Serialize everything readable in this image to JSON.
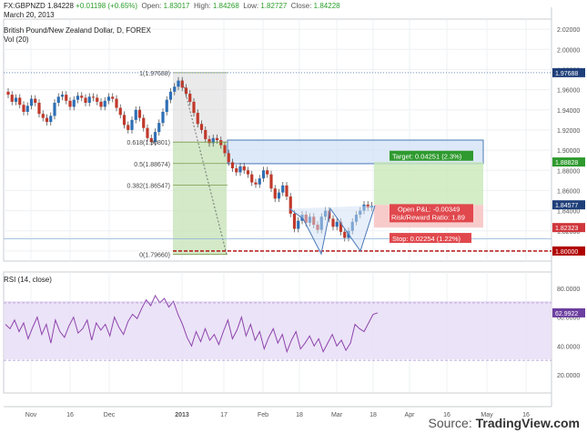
{
  "header": {
    "symbol": "FX:GBPNZD",
    "last": "1.84228",
    "change": "+0.01198 (+0.65%)",
    "open_label": "Open:",
    "open": "1.83017",
    "high_label": "High:",
    "high": "1.84268",
    "low_label": "Low:",
    "low": "1.82727",
    "close_label": "Close:",
    "close": "1.84228",
    "date": "March 20, 2013",
    "title": "British Pound/New Zealand Dollar, D, FOREX",
    "volume_label": "Vol (20)",
    "rsi_label": "RSI (14, close)"
  },
  "footer": {
    "source_prefix": "Source: ",
    "source_brand": "TradingView.com"
  },
  "colors": {
    "up": "#2e6fb5",
    "down": "#c0392b",
    "grid": "#eef0f3",
    "fib_box": "#d9d9d9",
    "green_zone": "#c9e8b9",
    "blue_zone": "#cfe0f5",
    "red_zone": "#f7c5c5",
    "rsi_band": "#e6dcf5",
    "rsi_line": "#8e44ad",
    "support": "#b00000",
    "last_price": "#1f3f7a"
  },
  "price_axis": {
    "ticks": [
      "2.02000",
      "2.00000",
      "1.98000",
      "1.96000",
      "1.94000",
      "1.92000",
      "1.90000",
      "1.88000",
      "1.86000",
      "1.84000",
      "1.82000",
      "1.80000"
    ]
  },
  "price_tags": {
    "top": "1.97688",
    "target": "1.88828",
    "last": "1.84577",
    "stop": "1.82323",
    "support": "1.80000"
  },
  "rsi_axis": {
    "ticks": [
      "80.0000",
      "60.0000",
      "40.0000",
      "20.0000"
    ],
    "value_tag": "62.9922"
  },
  "time_axis": {
    "labels": [
      "Nov",
      "16",
      "Dec",
      "2013",
      "17",
      "Feb",
      "18",
      "Mar",
      "18",
      "Apr",
      "16",
      "May",
      "16"
    ]
  },
  "fib_levels": [
    {
      "label": "1(1.97688)",
      "price": 1.97688
    },
    {
      "label": "0.618(1.90801)",
      "price": 1.90801
    },
    {
      "label": "0.5(1.88674)",
      "price": 1.88674
    },
    {
      "label": "0.382(1.86547)",
      "price": 1.86547
    },
    {
      "label": "0(1.79660)",
      "price": 1.7966
    }
  ],
  "trade_box": {
    "target_label": "Target: 0.04251 (2.3%)",
    "pnl_label": "Open P&L: -0.00349",
    "rr_label": "Risk/Reward Ratio: 1.89",
    "stop_label": "Stop: 0.02254 (1.22%)"
  },
  "chart_data": {
    "type": "candlestick",
    "ylim": [
      1.79,
      2.03
    ],
    "closes": [
      1.955,
      1.948,
      1.952,
      1.945,
      1.938,
      1.944,
      1.951,
      1.947,
      1.936,
      1.932,
      1.928,
      1.934,
      1.947,
      1.953,
      1.955,
      1.949,
      1.943,
      1.95,
      1.954,
      1.952,
      1.947,
      1.953,
      1.952,
      1.948,
      1.943,
      1.949,
      1.953,
      1.951,
      1.942,
      1.935,
      1.925,
      1.92,
      1.93,
      1.94,
      1.932,
      1.922,
      1.912,
      1.908,
      1.918,
      1.927,
      1.938,
      1.95,
      1.958,
      1.963,
      1.969,
      1.962,
      1.956,
      1.948,
      1.937,
      1.926,
      1.92,
      1.911,
      1.907,
      1.912,
      1.91,
      1.905,
      1.897,
      1.888,
      1.882,
      1.878,
      1.884,
      1.88,
      1.876,
      1.868,
      1.866,
      1.872,
      1.88,
      1.876,
      1.862,
      1.852,
      1.858,
      1.865,
      1.854,
      1.837,
      1.822,
      1.83,
      1.836,
      1.828,
      1.834,
      1.826,
      1.821,
      1.834,
      1.84,
      1.832,
      1.824,
      1.829,
      1.819,
      1.813,
      1.82,
      1.829,
      1.836,
      1.84,
      1.846,
      1.843,
      1.845
    ],
    "rsi": [
      55,
      52,
      58,
      50,
      56,
      45,
      53,
      60,
      48,
      55,
      42,
      58,
      50,
      46,
      54,
      60,
      49,
      52,
      58,
      44,
      56,
      51,
      55,
      47,
      60,
      53,
      48,
      57,
      62,
      59,
      66,
      72,
      68,
      75,
      70,
      73,
      67,
      71,
      62,
      55,
      46,
      40,
      50,
      43,
      52,
      44,
      48,
      41,
      50,
      58,
      45,
      51,
      60,
      47,
      55,
      44,
      50,
      38,
      46,
      52,
      42,
      48,
      36,
      44,
      50,
      38,
      42,
      47,
      40,
      45,
      36,
      42,
      48,
      40,
      44,
      37,
      42,
      55,
      52,
      50,
      56,
      62,
      63
    ]
  }
}
